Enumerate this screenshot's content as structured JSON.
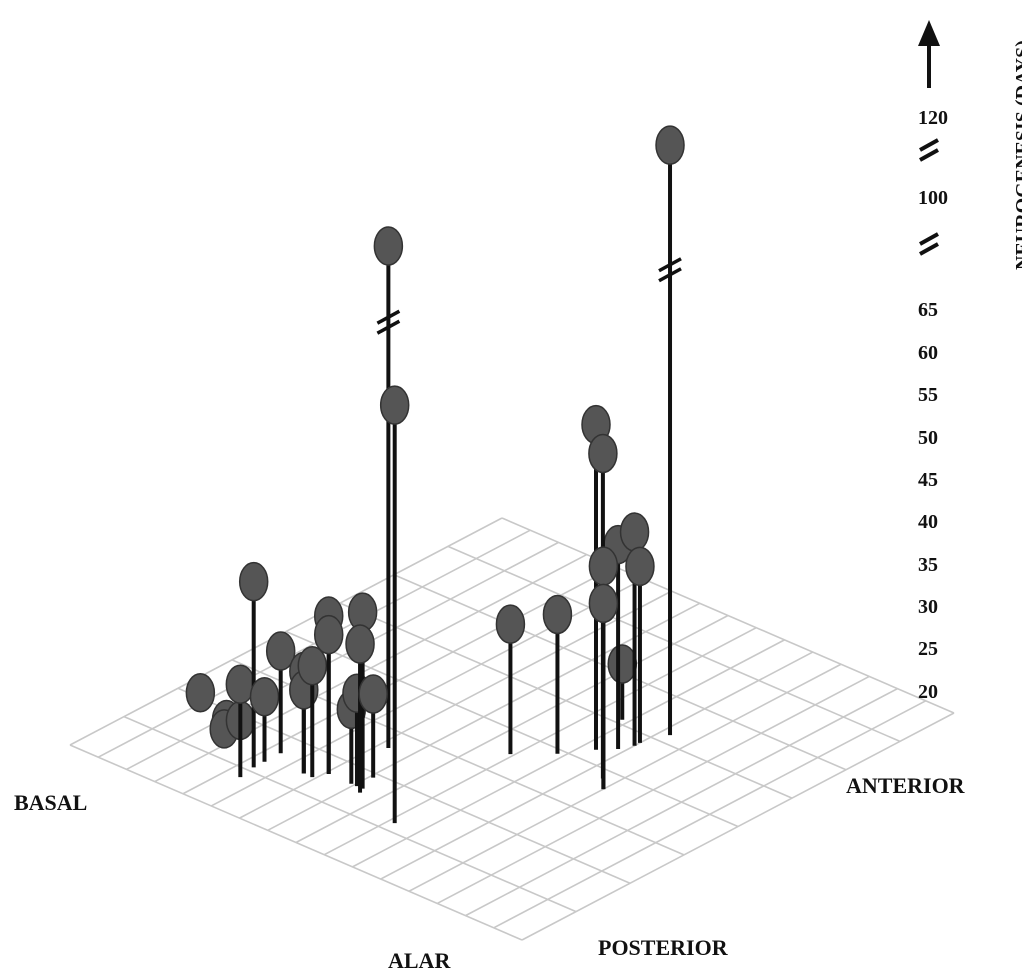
{
  "chart_data": {
    "type": "scatter",
    "subtype": "3d-stem",
    "title": "",
    "axes": {
      "z_label": "NEUROGENESIS (DAYS)",
      "z_ticks": [
        "20",
        "25",
        "30",
        "35",
        "40",
        "45",
        "50",
        "55",
        "60",
        "65",
        "100",
        "120"
      ],
      "z_breaks": [
        "65-100",
        "100-120"
      ],
      "basal_alar_labels": [
        "BASAL",
        "ALAR"
      ],
      "anterior_posterior_labels": [
        "ANTERIOR",
        "POSTERIOR"
      ]
    },
    "grid": true,
    "arrow_up": true,
    "points": [
      {
        "a": 0.6,
        "b": 2.1,
        "z": 0
      },
      {
        "a": 2.4,
        "b": 1.6,
        "z": 0
      },
      {
        "a": 2.4,
        "b": 1.9,
        "z": 0
      },
      {
        "a": 2.1,
        "b": 1.8,
        "z": 0
      },
      {
        "a": 4.4,
        "b": 1.1,
        "z": 40
      },
      {
        "a": 4.5,
        "b": 0.8,
        "z": 30
      },
      {
        "a": 4.4,
        "b": 1.3,
        "z": 27
      },
      {
        "a": 4.4,
        "b": 1.6,
        "z": 31
      },
      {
        "a": 5.6,
        "b": 1.4,
        "z": 31
      },
      {
        "a": 5.6,
        "b": 1.4,
        "z": 29
      },
      {
        "a": 5.9,
        "b": 1.4,
        "z": 32
      },
      {
        "a": 6.1,
        "b": 1.6,
        "z": 37
      },
      {
        "a": 6.1,
        "b": 1.6,
        "z": 35
      },
      {
        "a": 6.9,
        "b": 1.6,
        "z": 28
      },
      {
        "a": 7.1,
        "b": 1.6,
        "z": 30
      },
      {
        "a": 7.1,
        "b": 1.9,
        "z": 29
      },
      {
        "a": 7.3,
        "b": 1.6,
        "z": 39
      },
      {
        "a": 7.4,
        "b": 1.5,
        "z": 36
      },
      {
        "a": 6.3,
        "b": 2.6,
        "z": 100
      },
      {
        "a": 9.2,
        "b": 1.2,
        "z": 65
      },
      {
        "a": 8.9,
        "b": 3.5,
        "z": 34
      },
      {
        "a": 9.8,
        "b": 3.9,
        "z": 35
      },
      {
        "a": 9.8,
        "b": 5.1,
        "z": 26
      },
      {
        "a": 10.4,
        "b": 4.3,
        "z": 55
      },
      {
        "a": 10.8,
        "b": 4.5,
        "z": 42
      },
      {
        "a": 11.0,
        "b": 4.7,
        "z": 43
      },
      {
        "a": 11.0,
        "b": 4.8,
        "z": 39
      },
      {
        "a": 11.3,
        "b": 5.2,
        "z": 120
      },
      {
        "a": 11.6,
        "b": 3.8,
        "z": 55
      },
      {
        "a": 12.0,
        "b": 3.6,
        "z": 44
      },
      {
        "a": 12.0,
        "b": 3.6,
        "z": 40
      }
    ]
  }
}
